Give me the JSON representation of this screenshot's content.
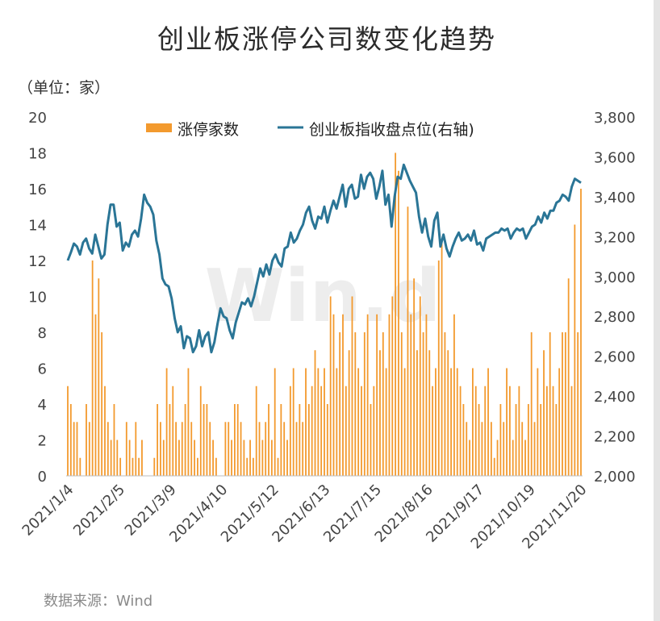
{
  "title": "创业板涨停公司数变化趋势",
  "unit": "（单位：家）",
  "source": "数据来源：Wind",
  "watermark": "Win.d",
  "colors": {
    "bars": "#f39a2e",
    "line": "#2a7596",
    "axis": "#bdbdbd"
  },
  "chart_data": {
    "type": "bar+line",
    "title": "创业板涨停公司数变化趋势",
    "y_left": {
      "label": "（单位：家）",
      "ylim": [
        0,
        20
      ],
      "ticks": [
        "0",
        "2",
        "4",
        "6",
        "8",
        "10",
        "12",
        "14",
        "16",
        "18",
        "20"
      ]
    },
    "y_right": {
      "ylim": [
        2000,
        3800
      ],
      "ticks": [
        "2,000",
        "2,200",
        "2,400",
        "2,600",
        "2,800",
        "3,000",
        "3,200",
        "3,400",
        "3,600",
        "3,800"
      ]
    },
    "x_tick_labels": [
      "2021/1/4",
      "2021/2/5",
      "2021/3/9",
      "2021/4/10",
      "2021/5/12",
      "2021/6/13",
      "2021/7/15",
      "2021/8/16",
      "2021/9/17",
      "2021/10/19",
      "2021/11/20"
    ],
    "legend": {
      "position": "top",
      "entries": [
        "涨停家数",
        "创业板指收盘点位(右轴)"
      ]
    },
    "series": [
      {
        "name": "涨停家数",
        "type": "bar",
        "axis": "left",
        "values": [
          5,
          4,
          3,
          3,
          1,
          0,
          4,
          3,
          12,
          9,
          11,
          8,
          5,
          3,
          2,
          4,
          2,
          1,
          0,
          3,
          2,
          1,
          3,
          1,
          2,
          0,
          0,
          0,
          1,
          4,
          3,
          2,
          6,
          4,
          5,
          3,
          2,
          3,
          4,
          6,
          3,
          2,
          1,
          5,
          4,
          4,
          3,
          2,
          1,
          0,
          0,
          3,
          3,
          2,
          4,
          4,
          3,
          2,
          1,
          2,
          1,
          5,
          3,
          2,
          3,
          4,
          2,
          6,
          1,
          4,
          3,
          2,
          5,
          6,
          3,
          4,
          3,
          6,
          4,
          5,
          7,
          6,
          5,
          6,
          4,
          10,
          9,
          6,
          8,
          9,
          5,
          7,
          10,
          8,
          6,
          5,
          8,
          9,
          4,
          5,
          9,
          7,
          8,
          6,
          9,
          10,
          18,
          17,
          8,
          6,
          15,
          9,
          11,
          7,
          10,
          8,
          9,
          7,
          5,
          6,
          12,
          13,
          8,
          7,
          6,
          9,
          6,
          5,
          4,
          3,
          2,
          6,
          5,
          4,
          3,
          5,
          6,
          3,
          1,
          2,
          4,
          3,
          6,
          5,
          2,
          4,
          5,
          3,
          2,
          4,
          8,
          3,
          6,
          4,
          7,
          5,
          8,
          5,
          4,
          6,
          8,
          8,
          11,
          5,
          14,
          8,
          16
        ]
      },
      {
        "name": "创业板指收盘点位(右轴)",
        "type": "line",
        "axis": "right",
        "values": [
          3080,
          3120,
          3165,
          3150,
          3110,
          3170,
          3190,
          3140,
          3115,
          3210,
          3150,
          3090,
          3110,
          3260,
          3360,
          3360,
          3250,
          3270,
          3130,
          3170,
          3150,
          3210,
          3230,
          3200,
          3290,
          3410,
          3370,
          3350,
          3310,
          3180,
          3110,
          2990,
          2960,
          2950,
          2890,
          2790,
          2720,
          2750,
          2640,
          2700,
          2690,
          2620,
          2650,
          2730,
          2650,
          2700,
          2720,
          2620,
          2670,
          2760,
          2840,
          2800,
          2790,
          2730,
          2690,
          2770,
          2820,
          2870,
          2860,
          2890,
          2850,
          2900,
          2970,
          3040,
          3000,
          3060,
          3010,
          3080,
          3110,
          3070,
          3050,
          3140,
          3150,
          3220,
          3170,
          3190,
          3230,
          3260,
          3320,
          3350,
          3280,
          3240,
          3300,
          3290,
          3350,
          3270,
          3330,
          3380,
          3340,
          3400,
          3460,
          3350,
          3440,
          3460,
          3390,
          3400,
          3510,
          3440,
          3500,
          3520,
          3490,
          3390,
          3450,
          3530,
          3360,
          3410,
          3250,
          3400,
          3500,
          3490,
          3560,
          3520,
          3480,
          3450,
          3420,
          3300,
          3220,
          3290,
          3200,
          3150,
          3280,
          3320,
          3150,
          3210,
          3140,
          3100,
          3150,
          3190,
          3220,
          3180,
          3190,
          3210,
          3180,
          3230,
          3160,
          3170,
          3130,
          3190,
          3200,
          3210,
          3220,
          3220,
          3240,
          3230,
          3240,
          3190,
          3220,
          3240,
          3230,
          3240,
          3190,
          3220,
          3250,
          3260,
          3300,
          3270,
          3320,
          3290,
          3330,
          3330,
          3370,
          3380,
          3410,
          3400,
          3380,
          3450,
          3490,
          3480,
          3470
        ]
      }
    ]
  }
}
